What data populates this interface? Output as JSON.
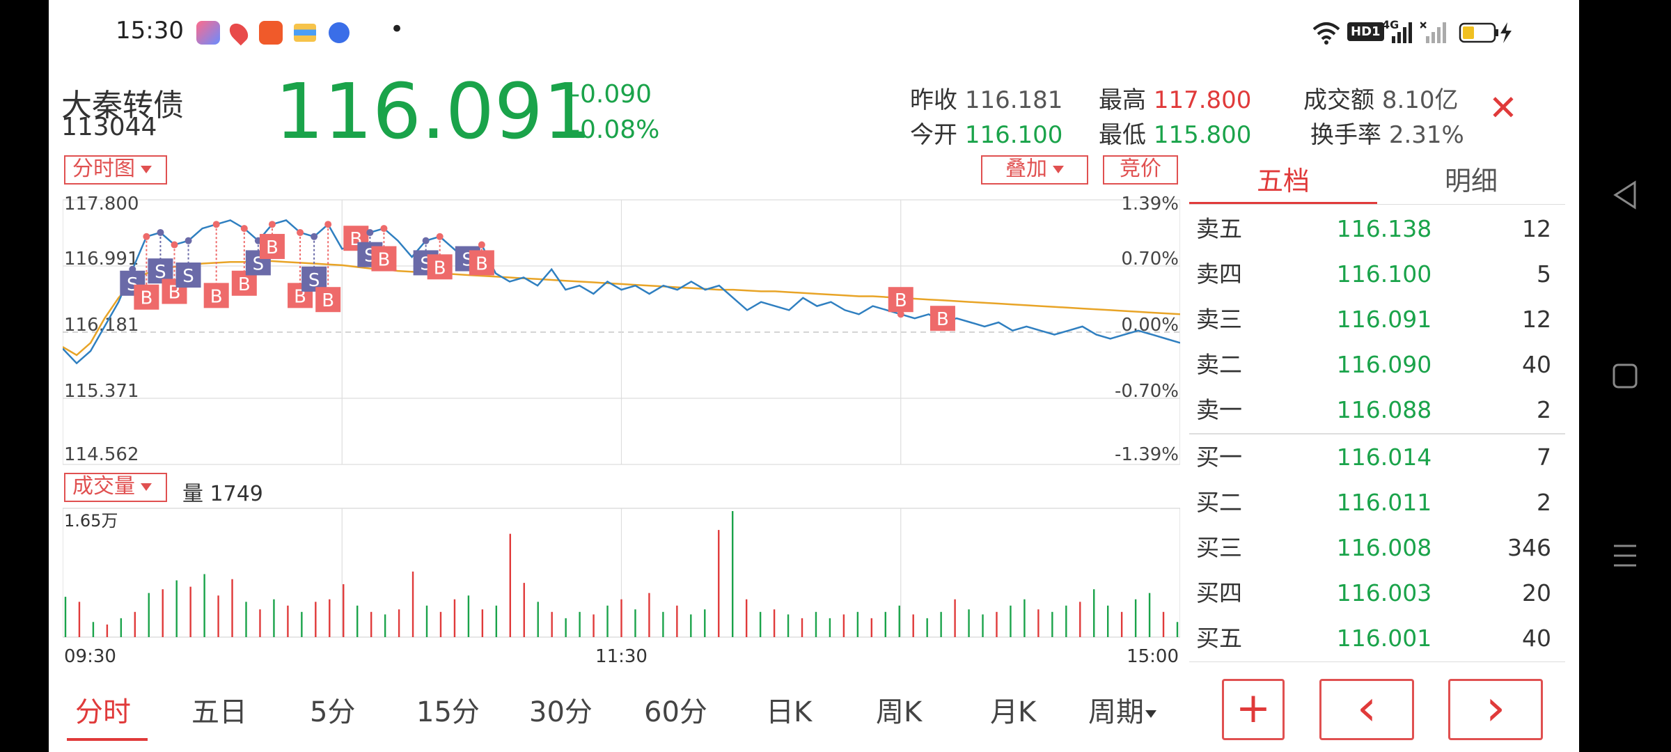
{
  "status_bar": {
    "time": "15:30",
    "app_icons": [
      "assistant-app-icon",
      "map-app-icon",
      "audio-app-icon",
      "wallet-app-icon",
      "baidu-app-icon"
    ],
    "dot": "•",
    "hd_badge": "HD1",
    "net_label": "4G"
  },
  "header": {
    "name": "大秦转债",
    "code": "113044",
    "price": "116.091",
    "change": "-0.090",
    "change_pct": "-0.08%",
    "stats": {
      "prev_close_label": "昨收",
      "prev_close": "116.181",
      "open_label": "今开",
      "open": "116.100",
      "high_label": "最高",
      "high": "117.800",
      "low_label": "最低",
      "low": "115.800",
      "turnover_label": "成交额",
      "turnover": "8.10亿",
      "turnover_rate_label": "换手率",
      "turnover_rate": "2.31%"
    },
    "close": "✕"
  },
  "chart_toolbar": {
    "mode": "分时图",
    "overlay": "叠加",
    "auction": "竞价"
  },
  "chart_data": {
    "type": "line",
    "y_left_ticks": [
      "117.800",
      "116.991",
      "116.181",
      "115.371",
      "114.562"
    ],
    "y_right_ticks": [
      "1.39%",
      "0.70%",
      "0.00%",
      "-0.70%",
      "-1.39%"
    ],
    "ylim": [
      114.562,
      117.8
    ],
    "x_ticks": [
      "09:30",
      "11:30",
      "15:00"
    ],
    "price_series": [
      115.98,
      115.8,
      115.95,
      116.25,
      116.55,
      116.95,
      117.35,
      117.4,
      117.25,
      117.3,
      117.45,
      117.5,
      117.55,
      117.45,
      117.3,
      117.5,
      117.55,
      117.4,
      117.35,
      117.5,
      117.2,
      117.25,
      117.4,
      117.45,
      117.3,
      117.1,
      117.3,
      117.35,
      117.2,
      117.05,
      117.25,
      116.9,
      116.8,
      116.85,
      116.75,
      116.95,
      116.7,
      116.75,
      116.65,
      116.8,
      116.7,
      116.75,
      116.65,
      116.75,
      116.7,
      116.8,
      116.7,
      116.75,
      116.6,
      116.45,
      116.55,
      116.5,
      116.45,
      116.6,
      116.5,
      116.55,
      116.45,
      116.4,
      116.5,
      116.45,
      116.4,
      116.35,
      116.4,
      116.3,
      116.35,
      116.3,
      116.25,
      116.3,
      116.2,
      116.25,
      116.2,
      116.15,
      116.2,
      116.25,
      116.15,
      116.1,
      116.15,
      116.2,
      116.15,
      116.1,
      116.05
    ],
    "avg_series": [
      116.0,
      115.9,
      116.05,
      116.35,
      116.6,
      116.8,
      116.9,
      116.95,
      116.98,
      117.0,
      117.02,
      117.03,
      117.04,
      117.04,
      117.05,
      117.05,
      117.04,
      117.03,
      117.02,
      117.01,
      117.0,
      116.98,
      116.96,
      116.95,
      116.93,
      116.92,
      116.91,
      116.9,
      116.89,
      116.88,
      116.87,
      116.86,
      116.85,
      116.84,
      116.83,
      116.82,
      116.81,
      116.8,
      116.79,
      116.78,
      116.77,
      116.76,
      116.75,
      116.74,
      116.73,
      116.72,
      116.71,
      116.7,
      116.7,
      116.69,
      116.68,
      116.68,
      116.67,
      116.66,
      116.65,
      116.64,
      116.63,
      116.62,
      116.62,
      116.61,
      116.6,
      116.59,
      116.58,
      116.57,
      116.56,
      116.55,
      116.54,
      116.53,
      116.52,
      116.51,
      116.5,
      116.49,
      116.48,
      116.47,
      116.46,
      116.45,
      116.44,
      116.43,
      116.42,
      116.41,
      116.4
    ],
    "trade_markers": [
      {
        "type": "S",
        "x": 5,
        "y": 116.95
      },
      {
        "type": "B",
        "x": 6,
        "y": 116.78
      },
      {
        "type": "S",
        "x": 7,
        "y": 117.1
      },
      {
        "type": "B",
        "x": 8,
        "y": 116.85
      },
      {
        "type": "S",
        "x": 9,
        "y": 117.05
      },
      {
        "type": "B",
        "x": 11,
        "y": 116.8
      },
      {
        "type": "B",
        "x": 13,
        "y": 116.95
      },
      {
        "type": "S",
        "x": 14,
        "y": 117.2
      },
      {
        "type": "B",
        "x": 15,
        "y": 117.4
      },
      {
        "type": "B",
        "x": 17,
        "y": 116.8
      },
      {
        "type": "S",
        "x": 18,
        "y": 117.0
      },
      {
        "type": "B",
        "x": 19,
        "y": 116.75
      },
      {
        "type": "B",
        "x": 21,
        "y": 117.5
      },
      {
        "type": "S",
        "x": 22,
        "y": 117.3
      },
      {
        "type": "B",
        "x": 23,
        "y": 117.25
      },
      {
        "type": "S",
        "x": 26,
        "y": 117.2
      },
      {
        "type": "B",
        "x": 27,
        "y": 117.15
      },
      {
        "type": "S",
        "x": 29,
        "y": 117.25
      },
      {
        "type": "B",
        "x": 30,
        "y": 117.2
      },
      {
        "type": "B",
        "x": 60,
        "y": 116.75
      },
      {
        "type": "B",
        "x": 63,
        "y": 116.52
      }
    ]
  },
  "volume": {
    "selector": "成交量",
    "label": "量 1749",
    "max_label": "1.65万",
    "x_ticks": [
      "09:30",
      "11:30",
      "15:00"
    ],
    "bars": [
      {
        "v": 0.32,
        "c": "g"
      },
      {
        "v": 0.28,
        "c": "r"
      },
      {
        "v": 0.12,
        "c": "g"
      },
      {
        "v": 0.1,
        "c": "r"
      },
      {
        "v": 0.15,
        "c": "g"
      },
      {
        "v": 0.2,
        "c": "r"
      },
      {
        "v": 0.35,
        "c": "g"
      },
      {
        "v": 0.38,
        "c": "r"
      },
      {
        "v": 0.45,
        "c": "g"
      },
      {
        "v": 0.4,
        "c": "r"
      },
      {
        "v": 0.5,
        "c": "g"
      },
      {
        "v": 0.33,
        "c": "r"
      },
      {
        "v": 0.46,
        "c": "r"
      },
      {
        "v": 0.28,
        "c": "g"
      },
      {
        "v": 0.22,
        "c": "r"
      },
      {
        "v": 0.3,
        "c": "g"
      },
      {
        "v": 0.25,
        "c": "r"
      },
      {
        "v": 0.2,
        "c": "g"
      },
      {
        "v": 0.28,
        "c": "r"
      },
      {
        "v": 0.3,
        "c": "r"
      },
      {
        "v": 0.42,
        "c": "r"
      },
      {
        "v": 0.25,
        "c": "g"
      },
      {
        "v": 0.2,
        "c": "r"
      },
      {
        "v": 0.18,
        "c": "g"
      },
      {
        "v": 0.22,
        "c": "r"
      },
      {
        "v": 0.52,
        "c": "r"
      },
      {
        "v": 0.25,
        "c": "g"
      },
      {
        "v": 0.2,
        "c": "r"
      },
      {
        "v": 0.3,
        "c": "r"
      },
      {
        "v": 0.33,
        "c": "g"
      },
      {
        "v": 0.22,
        "c": "r"
      },
      {
        "v": 0.25,
        "c": "g"
      },
      {
        "v": 0.82,
        "c": "r"
      },
      {
        "v": 0.43,
        "c": "r"
      },
      {
        "v": 0.28,
        "c": "g"
      },
      {
        "v": 0.2,
        "c": "r"
      },
      {
        "v": 0.15,
        "c": "g"
      },
      {
        "v": 0.2,
        "c": "g"
      },
      {
        "v": 0.18,
        "c": "r"
      },
      {
        "v": 0.25,
        "c": "g"
      },
      {
        "v": 0.3,
        "c": "r"
      },
      {
        "v": 0.22,
        "c": "g"
      },
      {
        "v": 0.35,
        "c": "r"
      },
      {
        "v": 0.2,
        "c": "g"
      },
      {
        "v": 0.25,
        "c": "r"
      },
      {
        "v": 0.18,
        "c": "g"
      },
      {
        "v": 0.22,
        "c": "g"
      },
      {
        "v": 0.85,
        "c": "r"
      },
      {
        "v": 1.0,
        "c": "g"
      },
      {
        "v": 0.3,
        "c": "r"
      },
      {
        "v": 0.2,
        "c": "g"
      },
      {
        "v": 0.22,
        "c": "r"
      },
      {
        "v": 0.18,
        "c": "g"
      },
      {
        "v": 0.15,
        "c": "r"
      },
      {
        "v": 0.2,
        "c": "g"
      },
      {
        "v": 0.15,
        "c": "g"
      },
      {
        "v": 0.18,
        "c": "r"
      },
      {
        "v": 0.2,
        "c": "g"
      },
      {
        "v": 0.15,
        "c": "r"
      },
      {
        "v": 0.2,
        "c": "g"
      },
      {
        "v": 0.25,
        "c": "g"
      },
      {
        "v": 0.18,
        "c": "r"
      },
      {
        "v": 0.15,
        "c": "g"
      },
      {
        "v": 0.2,
        "c": "g"
      },
      {
        "v": 0.3,
        "c": "r"
      },
      {
        "v": 0.22,
        "c": "g"
      },
      {
        "v": 0.18,
        "c": "g"
      },
      {
        "v": 0.2,
        "c": "r"
      },
      {
        "v": 0.25,
        "c": "g"
      },
      {
        "v": 0.3,
        "c": "g"
      },
      {
        "v": 0.22,
        "c": "r"
      },
      {
        "v": 0.2,
        "c": "g"
      },
      {
        "v": 0.25,
        "c": "g"
      },
      {
        "v": 0.28,
        "c": "r"
      },
      {
        "v": 0.38,
        "c": "g"
      },
      {
        "v": 0.25,
        "c": "g"
      },
      {
        "v": 0.2,
        "c": "r"
      },
      {
        "v": 0.3,
        "c": "g"
      },
      {
        "v": 0.35,
        "c": "g"
      },
      {
        "v": 0.2,
        "c": "r"
      },
      {
        "v": 0.12,
        "c": "g"
      }
    ]
  },
  "order_book": {
    "tab_active": "五档",
    "tab_other": "明细",
    "asks": [
      {
        "label": "卖五",
        "price": "116.138",
        "vol": "12"
      },
      {
        "label": "卖四",
        "price": "116.100",
        "vol": "5"
      },
      {
        "label": "卖三",
        "price": "116.091",
        "vol": "12"
      },
      {
        "label": "卖二",
        "price": "116.090",
        "vol": "40"
      },
      {
        "label": "卖一",
        "price": "116.088",
        "vol": "2"
      }
    ],
    "bids": [
      {
        "label": "买一",
        "price": "116.014",
        "vol": "7"
      },
      {
        "label": "买二",
        "price": "116.011",
        "vol": "2"
      },
      {
        "label": "买三",
        "price": "116.008",
        "vol": "346"
      },
      {
        "label": "买四",
        "price": "116.003",
        "vol": "20"
      },
      {
        "label": "买五",
        "price": "116.001",
        "vol": "40"
      }
    ]
  },
  "bottom_tabs": [
    "分时",
    "五日",
    "5分",
    "15分",
    "30分",
    "60分",
    "日K",
    "周K",
    "月K",
    "周期"
  ],
  "bottom_buttons": {
    "plus": "+",
    "prev": "‹",
    "next": "›"
  },
  "colors": {
    "up": "#e03a3a",
    "down": "#1aa34a",
    "accent": "#e05050",
    "price_line": "#2f7fc0",
    "avg_line": "#e8a427"
  }
}
